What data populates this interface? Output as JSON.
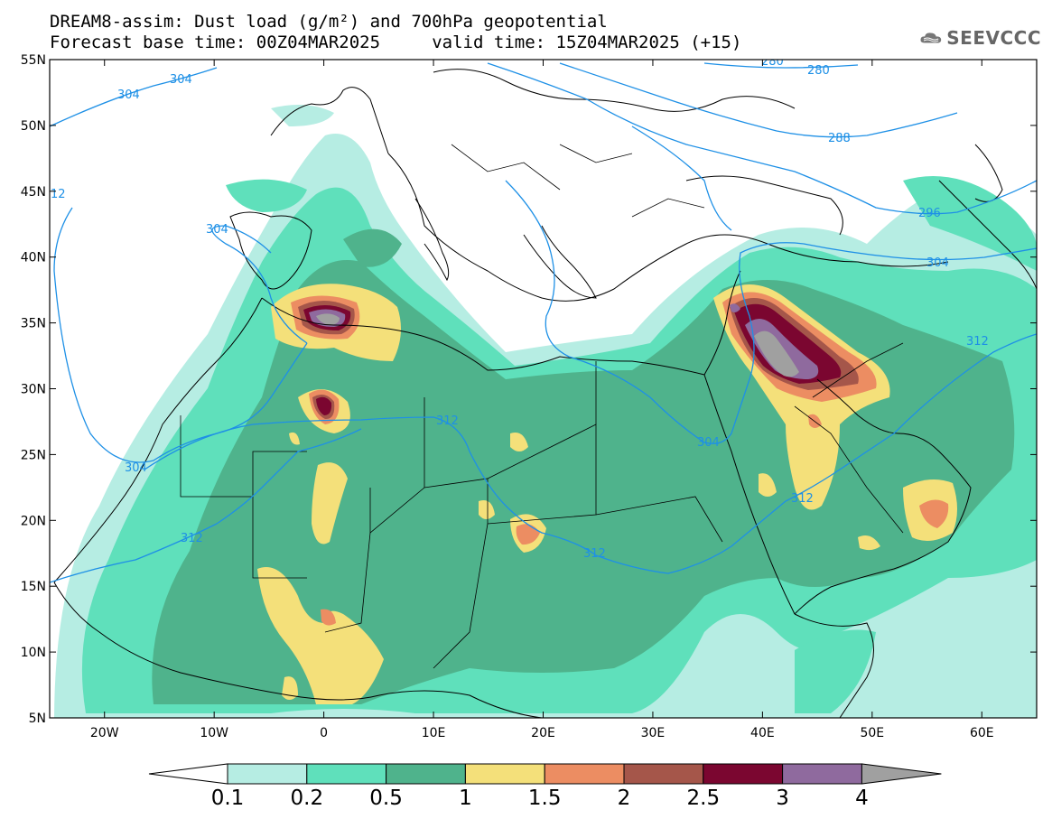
{
  "title": {
    "line1": "DREAM8-assim: Dust load (g/m²) and 700hPa geopotential",
    "line2": "Forecast base time: 00Z04MAR2025     valid time: 15Z04MAR2025 (+15)"
  },
  "logo": {
    "text": "SEEVCCC",
    "icon": "cloud-icon"
  },
  "axes": {
    "lon_labels": [
      "20W",
      "10W",
      "0",
      "10E",
      "20E",
      "30E",
      "40E",
      "50E",
      "60E"
    ],
    "lat_labels": [
      "55N",
      "50N",
      "45N",
      "40N",
      "35N",
      "30N",
      "25N",
      "20N",
      "15N",
      "10N",
      "5N"
    ],
    "lon_range": [
      -25,
      65
    ],
    "lat_range": [
      5,
      55
    ]
  },
  "contours": {
    "color": "#1e90e6",
    "labels": [
      "304",
      "304",
      "312",
      "304",
      "304",
      "312",
      "312",
      "304",
      "312",
      "312",
      "304",
      "296",
      "288",
      "280",
      "280"
    ]
  },
  "colorbar": {
    "levels": [
      "0.1",
      "0.2",
      "0.5",
      "1",
      "1.5",
      "2",
      "2.5",
      "3",
      "4"
    ],
    "colors": [
      "#b6ede3",
      "#5fe0bb",
      "#4fb38c",
      "#f4e07a",
      "#ec8d62",
      "#a5564a",
      "#7b0630",
      "#8f6a9e",
      "#a0a0a0"
    ]
  }
}
